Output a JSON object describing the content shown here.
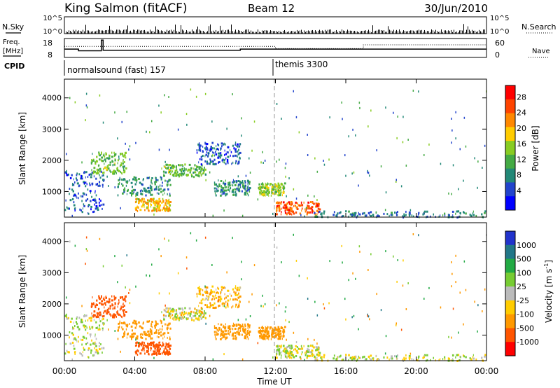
{
  "header": {
    "station": "King Salmon (fitACF)",
    "beam": "Beam 12",
    "date": "30/Jun/2010"
  },
  "nsky_panel": {
    "left_label": "N.Sky",
    "left_ticks": [
      "10^5",
      "10^0"
    ],
    "right_label": "N.Search",
    "right_ticks": [
      "10^5",
      "10^0"
    ]
  },
  "freq_panel": {
    "left_label_1": "Freq.",
    "left_label_2": "[MHz]",
    "left_ticks": [
      "18",
      "8"
    ],
    "right_label": "Nave",
    "right_ticks": [
      "60",
      "0"
    ]
  },
  "cpid_panel": {
    "label": "CPID",
    "mode_1": "normalsound (fast) 157",
    "mode_2": "themis 3300"
  },
  "x_axis": {
    "title": "Time UT",
    "ticks": [
      "00:00",
      "04:00",
      "08:00",
      "12:00",
      "16:00",
      "20:00",
      "00:00"
    ]
  },
  "y_axis": {
    "title": "Slant Range [km]",
    "ticks": [
      "4000",
      "3000",
      "2000",
      "1000"
    ]
  },
  "power_scale": {
    "title": "Power [dB]",
    "labels": [
      "28",
      "24",
      "20",
      "16",
      "12",
      "8",
      "4"
    ],
    "colors": [
      "#ff0000",
      "#ff4400",
      "#ff8800",
      "#ffcc00",
      "#88cc22",
      "#44aa44",
      "#228877",
      "#2244cc",
      "#0000ff"
    ]
  },
  "velocity_scale": {
    "title": "Velocity [m s",
    "title_sup": "-1",
    "title_close": "]",
    "labels": [
      "1000",
      "500",
      "100",
      "25",
      "-25",
      "-100",
      "-500",
      "-1000"
    ],
    "colors": [
      "#2233cc",
      "#227788",
      "#22aa44",
      "#77cc33",
      "#bbbbbb",
      "#ffcc00",
      "#ff9900",
      "#ff5500",
      "#ff0000"
    ]
  },
  "chart_data": [
    {
      "type": "heatmap",
      "title": "Power",
      "xlabel": "Time UT",
      "ylabel": "Slant Range [km]",
      "xlim": [
        "00:00",
        "24:00"
      ],
      "ylim": [
        180,
        4600
      ],
      "colorbar": {
        "label": "Power [dB]",
        "range": [
          0,
          32
        ]
      },
      "echo_regions": [
        {
          "t_start_h": 0.0,
          "t_end_h": 2.2,
          "range_km": [
            300,
            1700
          ],
          "power_db": 6
        },
        {
          "t_start_h": 1.5,
          "t_end_h": 3.5,
          "range_km": [
            1600,
            2300
          ],
          "power_db": 14
        },
        {
          "t_start_h": 3.0,
          "t_end_h": 6.0,
          "range_km": [
            900,
            1500
          ],
          "power_db": 10
        },
        {
          "t_start_h": 4.0,
          "t_end_h": 6.0,
          "range_km": [
            400,
            800
          ],
          "power_db": 20
        },
        {
          "t_start_h": 5.5,
          "t_end_h": 8.0,
          "range_km": [
            1500,
            1900
          ],
          "power_db": 14
        },
        {
          "t_start_h": 7.5,
          "t_end_h": 10.0,
          "range_km": [
            1900,
            2600
          ],
          "power_db": 6
        },
        {
          "t_start_h": 8.5,
          "t_end_h": 10.5,
          "range_km": [
            900,
            1400
          ],
          "power_db": 10
        },
        {
          "t_start_h": 11.0,
          "t_end_h": 12.5,
          "range_km": [
            900,
            1300
          ],
          "power_db": 16
        },
        {
          "t_start_h": 12.0,
          "t_end_h": 14.5,
          "range_km": [
            300,
            700
          ],
          "power_db": 26
        },
        {
          "t_start_h": 14.0,
          "t_end_h": 24.0,
          "range_km": [
            200,
            400
          ],
          "power_db": 8
        }
      ]
    },
    {
      "type": "heatmap",
      "title": "Velocity",
      "xlabel": "Time UT",
      "ylabel": "Slant Range [km]",
      "xlim": [
        "00:00",
        "24:00"
      ],
      "ylim": [
        180,
        4600
      ],
      "colorbar": {
        "label": "Velocity [m s-1]",
        "range": [
          -1000,
          1000
        ]
      },
      "echo_regions": [
        {
          "t_start_h": 0.0,
          "t_end_h": 2.2,
          "range_km": [
            300,
            1700
          ],
          "velocity_ms": 0
        },
        {
          "t_start_h": 1.5,
          "t_end_h": 3.5,
          "range_km": [
            1600,
            2300
          ],
          "velocity_ms": -700
        },
        {
          "t_start_h": 3.0,
          "t_end_h": 6.0,
          "range_km": [
            900,
            1500
          ],
          "velocity_ms": -300
        },
        {
          "t_start_h": 4.0,
          "t_end_h": 6.0,
          "range_km": [
            400,
            800
          ],
          "velocity_ms": -900
        },
        {
          "t_start_h": 5.5,
          "t_end_h": 8.0,
          "range_km": [
            1500,
            1900
          ],
          "velocity_ms": -20
        },
        {
          "t_start_h": 7.5,
          "t_end_h": 10.0,
          "range_km": [
            1900,
            2600
          ],
          "velocity_ms": -100
        },
        {
          "t_start_h": 8.5,
          "t_end_h": 10.5,
          "range_km": [
            900,
            1400
          ],
          "velocity_ms": -300
        },
        {
          "t_start_h": 11.0,
          "t_end_h": 12.5,
          "range_km": [
            900,
            1300
          ],
          "velocity_ms": -200
        },
        {
          "t_start_h": 12.0,
          "t_end_h": 14.5,
          "range_km": [
            300,
            700
          ],
          "velocity_ms": 0
        },
        {
          "t_start_h": 14.0,
          "t_end_h": 24.0,
          "range_km": [
            200,
            400
          ],
          "velocity_ms": 0
        }
      ]
    },
    {
      "type": "line",
      "title": "Freq. [MHz]",
      "xlim": [
        "00:00",
        "24:00"
      ],
      "ylim": [
        8,
        18
      ],
      "series": [
        {
          "x_h": [
            0,
            0.8,
            0.8,
            2.1,
            2.1,
            2.2,
            2.2,
            10.0,
            10.0,
            24.0
          ],
          "values": [
            12.4,
            12.4,
            11.5,
            11.5,
            17.2,
            17.2,
            11.8,
            11.8,
            12.4,
            12.4
          ]
        }
      ]
    },
    {
      "type": "line",
      "title": "Nave",
      "xlim": [
        "00:00",
        "24:00"
      ],
      "ylim": [
        0,
        60
      ],
      "series": [
        {
          "x_h": [
            0,
            12,
            12,
            17.0,
            17.0,
            24.0
          ],
          "values": [
            35,
            35,
            28,
            28,
            40,
            40
          ]
        }
      ]
    }
  ]
}
